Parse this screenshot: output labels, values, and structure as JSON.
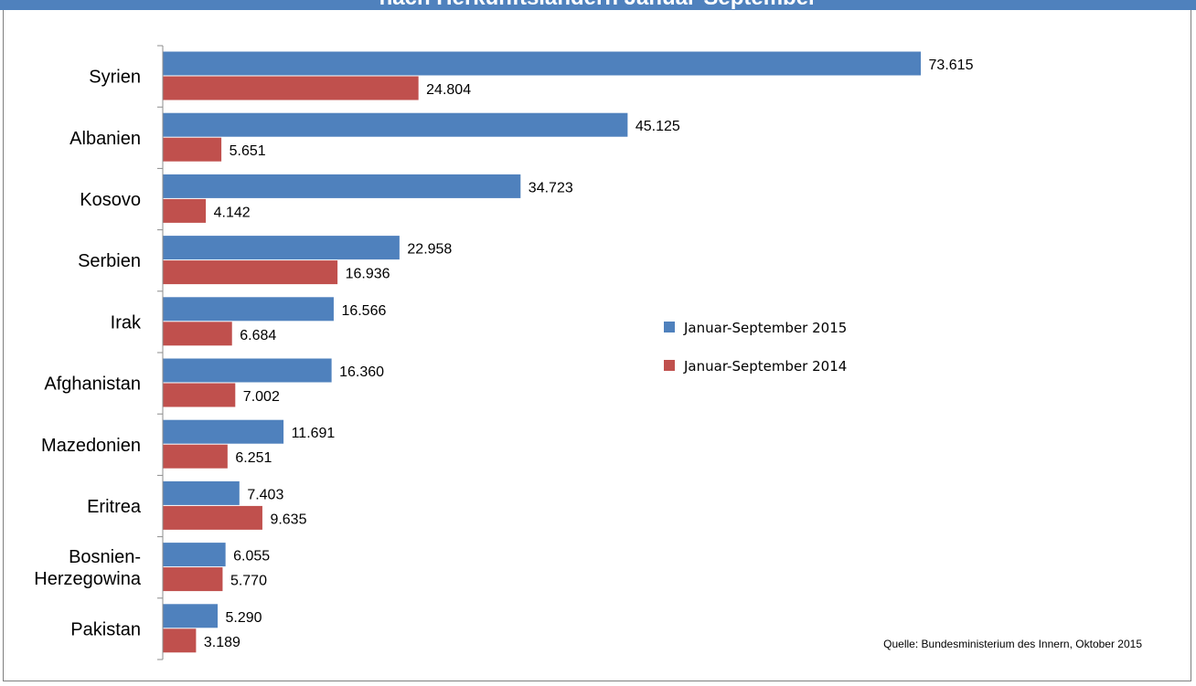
{
  "header": {
    "title_fragment": "nach Herkunftsländern Januar-September"
  },
  "source": "Quelle: Bundesministerium des Innern,  Oktober 2015",
  "colors": {
    "series_2015": "#4f81bd",
    "series_2014": "#c0504d",
    "axis": "#8c8c8c",
    "frame": "#7f7f7f",
    "header_band": "#4f81bd"
  },
  "chart_data": {
    "type": "bar",
    "orientation": "horizontal",
    "categories": [
      [
        "Syrien"
      ],
      [
        "Albanien"
      ],
      [
        "Kosovo"
      ],
      [
        "Serbien"
      ],
      [
        "Irak"
      ],
      [
        "Afghanistan"
      ],
      [
        "Mazedonien"
      ],
      [
        "Eritrea"
      ],
      [
        "Bosnien-",
        "Herzegowina"
      ],
      [
        "Pakistan"
      ]
    ],
    "series": [
      {
        "name": "Januar-September 2015",
        "values": [
          73615,
          45125,
          34723,
          22958,
          16566,
          16360,
          11691,
          7403,
          6055,
          5290
        ],
        "labels": [
          "73.615",
          "45.125",
          "34.723",
          "22.958",
          "16.566",
          "16.360",
          "11.691",
          "7.403",
          "6.055",
          "5.290"
        ]
      },
      {
        "name": "Januar-September 2014",
        "values": [
          24804,
          5651,
          4142,
          16936,
          6684,
          7002,
          6251,
          9635,
          5770,
          3189
        ],
        "labels": [
          "24.804",
          "5.651",
          "4.142",
          "16.936",
          "6.684",
          "7.002",
          "6.251",
          "9.635",
          "5.770",
          "3.189"
        ]
      }
    ],
    "xlim": [
      0,
      80000
    ],
    "grid": false,
    "legend": {
      "position": "center-right"
    }
  }
}
